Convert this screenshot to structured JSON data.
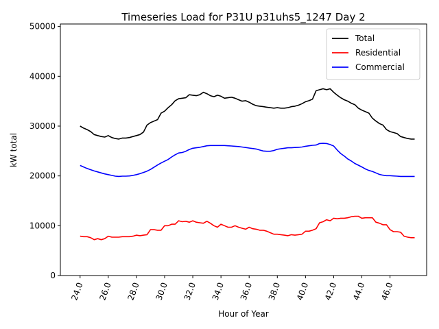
{
  "chart_data": {
    "type": "line",
    "title": "Timeseries Load for P31U p31uhs5_1247  Day 2",
    "xlabel": "Hour of Year",
    "ylabel": "kW total",
    "xlim": [
      22.6,
      48.6
    ],
    "ylim": [
      0,
      50500
    ],
    "x_ticks": [
      24,
      26,
      28,
      30,
      32,
      34,
      36,
      38,
      40,
      42,
      44,
      46
    ],
    "x_tick_labels": [
      "24.0",
      "26.0",
      "28.0",
      "30.0",
      "32.0",
      "34.0",
      "36.0",
      "38.0",
      "40.0",
      "42.0",
      "44.0",
      "46.0"
    ],
    "y_ticks": [
      0,
      10000,
      20000,
      30000,
      40000,
      50000
    ],
    "y_tick_labels": [
      "0",
      "10000",
      "20000",
      "30000",
      "40000",
      "50000"
    ],
    "legend_position": "top-right",
    "series": [
      {
        "name": "Total",
        "color": "#000000",
        "x": [
          24.0,
          24.25,
          24.5,
          24.75,
          25.0,
          25.25,
          25.5,
          25.75,
          26.0,
          26.25,
          26.5,
          26.75,
          27.0,
          27.25,
          27.5,
          27.75,
          28.0,
          28.25,
          28.5,
          28.75,
          29.0,
          29.25,
          29.5,
          29.75,
          30.0,
          30.25,
          30.5,
          30.75,
          31.0,
          31.25,
          31.5,
          31.75,
          32.0,
          32.25,
          32.5,
          32.75,
          33.0,
          33.25,
          33.5,
          33.75,
          34.0,
          34.25,
          34.5,
          34.75,
          35.0,
          35.25,
          35.5,
          35.75,
          36.0,
          36.25,
          36.5,
          36.75,
          37.0,
          37.25,
          37.5,
          37.75,
          38.0,
          38.25,
          38.5,
          38.75,
          39.0,
          39.25,
          39.5,
          39.75,
          40.0,
          40.25,
          40.5,
          40.75,
          41.0,
          41.25,
          41.5,
          41.75,
          42.0,
          42.25,
          42.5,
          42.75,
          43.0,
          43.25,
          43.5,
          43.75,
          44.0,
          44.25,
          44.5,
          44.75,
          45.0,
          45.25,
          45.5,
          45.75,
          46.0,
          46.25,
          46.5,
          46.75,
          47.0,
          47.25,
          47.5,
          47.75
        ],
        "values": [
          30000,
          29600,
          29300,
          28900,
          28300,
          28100,
          27900,
          27800,
          28100,
          27700,
          27500,
          27400,
          27600,
          27600,
          27700,
          27900,
          28100,
          28300,
          28800,
          30200,
          30700,
          31000,
          31300,
          32600,
          33000,
          33700,
          34300,
          35100,
          35500,
          35600,
          35700,
          36300,
          36200,
          36100,
          36300,
          36800,
          36500,
          36100,
          35900,
          36200,
          36000,
          35600,
          35700,
          35800,
          35600,
          35300,
          35000,
          35100,
          34800,
          34400,
          34100,
          34000,
          33900,
          33800,
          33700,
          33600,
          33700,
          33600,
          33600,
          33700,
          33900,
          34000,
          34200,
          34500,
          34900,
          35100,
          35400,
          37100,
          37300,
          37500,
          37300,
          37500,
          36800,
          36200,
          35700,
          35300,
          35000,
          34600,
          34300,
          33600,
          33200,
          32900,
          32600,
          31600,
          31000,
          30500,
          30200,
          29300,
          28900,
          28700,
          28500,
          27900,
          27700,
          27500,
          27400,
          27400
        ]
      },
      {
        "name": "Residential",
        "color": "#ff0000",
        "x": [
          24.0,
          24.25,
          24.5,
          24.75,
          25.0,
          25.25,
          25.5,
          25.75,
          26.0,
          26.25,
          26.5,
          26.75,
          27.0,
          27.25,
          27.5,
          27.75,
          28.0,
          28.25,
          28.5,
          28.75,
          29.0,
          29.25,
          29.5,
          29.75,
          30.0,
          30.25,
          30.5,
          30.75,
          31.0,
          31.25,
          31.5,
          31.75,
          32.0,
          32.25,
          32.5,
          32.75,
          33.0,
          33.25,
          33.5,
          33.75,
          34.0,
          34.25,
          34.5,
          34.75,
          35.0,
          35.25,
          35.5,
          35.75,
          36.0,
          36.25,
          36.5,
          36.75,
          37.0,
          37.25,
          37.5,
          37.75,
          38.0,
          38.25,
          38.5,
          38.75,
          39.0,
          39.25,
          39.5,
          39.75,
          40.0,
          40.25,
          40.5,
          40.75,
          41.0,
          41.25,
          41.5,
          41.75,
          42.0,
          42.25,
          42.5,
          42.75,
          43.0,
          43.25,
          43.5,
          43.75,
          44.0,
          44.25,
          44.5,
          44.75,
          45.0,
          45.25,
          45.5,
          45.75,
          46.0,
          46.25,
          46.5,
          46.75,
          47.0,
          47.25,
          47.5,
          47.75
        ],
        "values": [
          7900,
          7800,
          7800,
          7600,
          7200,
          7400,
          7200,
          7400,
          7900,
          7700,
          7700,
          7700,
          7800,
          7800,
          7800,
          7900,
          8100,
          8000,
          8100,
          8200,
          9200,
          9200,
          9100,
          9100,
          10000,
          10000,
          10300,
          10300,
          11000,
          10800,
          10900,
          10700,
          11000,
          10700,
          10600,
          10500,
          10900,
          10500,
          10000,
          9700,
          10300,
          10000,
          9700,
          9700,
          10000,
          9700,
          9500,
          9300,
          9700,
          9400,
          9300,
          9100,
          9100,
          8900,
          8600,
          8300,
          8300,
          8200,
          8100,
          8000,
          8200,
          8100,
          8200,
          8300,
          8900,
          8900,
          9100,
          9400,
          10600,
          10800,
          11200,
          11000,
          11500,
          11400,
          11500,
          11500,
          11600,
          11800,
          11900,
          11900,
          11500,
          11600,
          11600,
          11600,
          10700,
          10500,
          10200,
          10200,
          9200,
          8800,
          8800,
          8700,
          7900,
          7700,
          7600,
          7600
        ]
      },
      {
        "name": "Commercial",
        "color": "#0000ff",
        "x": [
          24.0,
          24.25,
          24.5,
          24.75,
          25.0,
          25.25,
          25.5,
          25.75,
          26.0,
          26.25,
          26.5,
          26.75,
          27.0,
          27.25,
          27.5,
          27.75,
          28.0,
          28.25,
          28.5,
          28.75,
          29.0,
          29.25,
          29.5,
          29.75,
          30.0,
          30.25,
          30.5,
          30.75,
          31.0,
          31.25,
          31.5,
          31.75,
          32.0,
          32.25,
          32.5,
          32.75,
          33.0,
          33.25,
          33.5,
          33.75,
          34.0,
          34.25,
          34.5,
          34.75,
          35.0,
          35.25,
          35.5,
          35.75,
          36.0,
          36.25,
          36.5,
          36.75,
          37.0,
          37.25,
          37.5,
          37.75,
          38.0,
          38.25,
          38.5,
          38.75,
          39.0,
          39.25,
          39.5,
          39.75,
          40.0,
          40.25,
          40.5,
          40.75,
          41.0,
          41.25,
          41.5,
          41.75,
          42.0,
          42.25,
          42.5,
          42.75,
          43.0,
          43.25,
          43.5,
          43.75,
          44.0,
          44.25,
          44.5,
          44.75,
          45.0,
          45.25,
          45.5,
          45.75,
          46.0,
          46.25,
          46.5,
          46.75,
          47.0,
          47.25,
          47.5,
          47.75
        ],
        "values": [
          22100,
          21800,
          21500,
          21250,
          21000,
          20800,
          20600,
          20400,
          20250,
          20100,
          19950,
          19900,
          19950,
          19950,
          20000,
          20100,
          20250,
          20450,
          20700,
          20950,
          21300,
          21750,
          22200,
          22600,
          22950,
          23300,
          23800,
          24250,
          24600,
          24700,
          24950,
          25300,
          25550,
          25650,
          25750,
          25900,
          26050,
          26100,
          26100,
          26100,
          26100,
          26100,
          26050,
          26000,
          25950,
          25900,
          25800,
          25700,
          25600,
          25500,
          25400,
          25200,
          25000,
          24950,
          24950,
          25100,
          25350,
          25450,
          25550,
          25650,
          25650,
          25700,
          25750,
          25800,
          25950,
          26050,
          26150,
          26200,
          26500,
          26550,
          26500,
          26300,
          26000,
          25200,
          24500,
          24000,
          23400,
          23000,
          22500,
          22150,
          21800,
          21400,
          21100,
          20900,
          20600,
          20300,
          20150,
          20050,
          20050,
          20000,
          19950,
          19900,
          19900,
          19900,
          19900,
          19900
        ]
      }
    ]
  }
}
